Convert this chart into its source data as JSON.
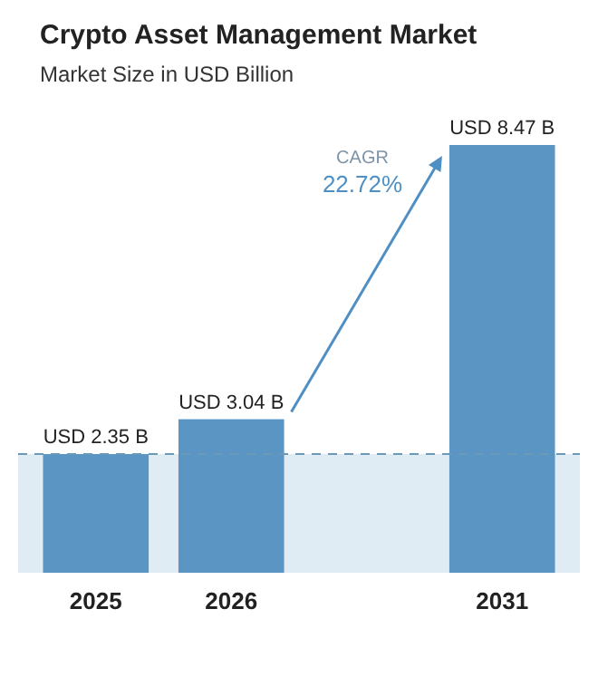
{
  "chart_data": {
    "type": "bar",
    "title": "Crypto Asset Management Market",
    "subtitle": "Market Size in USD Billion",
    "categories": [
      "2025",
      "2026",
      null,
      "2031"
    ],
    "values": [
      2.35,
      3.04,
      null,
      8.47
    ],
    "colors": [
      "#5b95c3",
      "#5b95c3",
      null,
      "#5b95c3"
    ],
    "value_labels": [
      "USD 2.35 B",
      "USD 3.04 B",
      null,
      "USD 8.47 B"
    ],
    "ref_lines": [
      {
        "axis": "y",
        "value": 2.35,
        "color": "#6a9ab8",
        "line_style": "dashed"
      }
    ],
    "bands": [
      {
        "axis": "y",
        "from": 0,
        "to": 2.35,
        "color": "#dfecf4"
      }
    ],
    "annotations": [
      "CAGR",
      "22.72%"
    ]
  }
}
